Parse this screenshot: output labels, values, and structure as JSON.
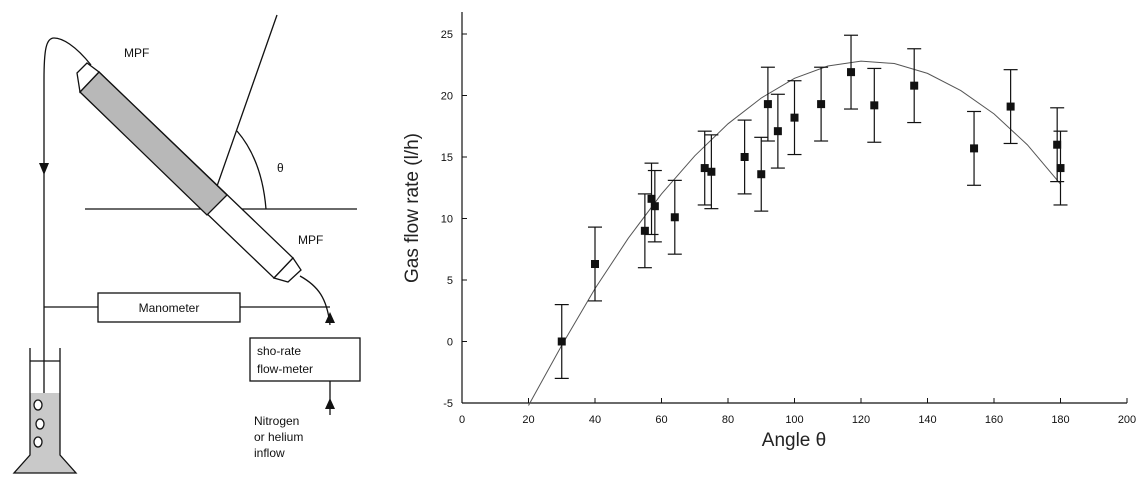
{
  "diagram": {
    "mpf_top": "MPF",
    "mpf_bottom": "MPF",
    "theta": "θ",
    "manometer": "Manometer",
    "flowmeter_line1": "sho-rate",
    "flowmeter_line2": "flow-meter",
    "inflow_line1": "Nitrogen",
    "inflow_line2": "or helium",
    "inflow_line3": "inflow"
  },
  "chart_data": {
    "type": "scatter",
    "xlabel": "Angle θ",
    "ylabel": "Gas flow rate (l/h)",
    "xlim": [
      0,
      200
    ],
    "ylim": [
      -5,
      25
    ],
    "x_ticks": [
      0,
      20,
      40,
      60,
      80,
      100,
      120,
      140,
      160,
      180,
      200
    ],
    "y_ticks": [
      -5,
      0,
      5,
      10,
      15,
      20,
      25
    ],
    "grid": false,
    "marker": "square",
    "points": [
      {
        "x": 30,
        "y": 0.0,
        "err": 3.0
      },
      {
        "x": 40,
        "y": 6.3,
        "err": 3.0
      },
      {
        "x": 55,
        "y": 9.0,
        "err": 3.0
      },
      {
        "x": 57,
        "y": 11.6,
        "err": 2.9
      },
      {
        "x": 58,
        "y": 11.0,
        "err": 2.9
      },
      {
        "x": 64,
        "y": 10.1,
        "err": 3.0
      },
      {
        "x": 73,
        "y": 14.1,
        "err": 3.0
      },
      {
        "x": 75,
        "y": 13.8,
        "err": 3.0
      },
      {
        "x": 85,
        "y": 15.0,
        "err": 3.0
      },
      {
        "x": 90,
        "y": 13.6,
        "err": 3.0
      },
      {
        "x": 92,
        "y": 19.3,
        "err": 3.0
      },
      {
        "x": 95,
        "y": 17.1,
        "err": 3.0
      },
      {
        "x": 100,
        "y": 18.2,
        "err": 3.0
      },
      {
        "x": 108,
        "y": 19.3,
        "err": 3.0
      },
      {
        "x": 117,
        "y": 21.9,
        "err": 3.0
      },
      {
        "x": 124,
        "y": 19.2,
        "err": 3.0
      },
      {
        "x": 136,
        "y": 20.8,
        "err": 3.0
      },
      {
        "x": 154,
        "y": 15.7,
        "err": 3.0
      },
      {
        "x": 165,
        "y": 19.1,
        "err": 3.0
      },
      {
        "x": 179,
        "y": 16.0,
        "err": 3.0
      },
      {
        "x": 180,
        "y": 14.1,
        "err": 3.0
      }
    ],
    "fit_curve": {
      "x": [
        20,
        30,
        40,
        50,
        60,
        70,
        80,
        90,
        100,
        110,
        120,
        130,
        140,
        150,
        160,
        170,
        180
      ],
      "y": [
        -5.2,
        -0.3,
        4.3,
        8.4,
        12.0,
        15.1,
        17.7,
        19.8,
        21.4,
        22.4,
        22.8,
        22.6,
        21.8,
        20.4,
        18.5,
        16.0,
        12.8
      ]
    }
  }
}
